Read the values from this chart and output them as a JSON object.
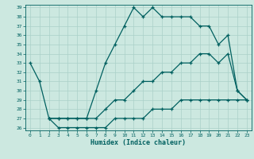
{
  "xlabel": "Humidex (Indice chaleur)",
  "background_color": "#cce8e0",
  "grid_color": "#aad0c8",
  "line_color": "#006060",
  "xlim": [
    -0.5,
    23.5
  ],
  "ylim": [
    26,
    39
  ],
  "yticks": [
    26,
    27,
    28,
    29,
    30,
    31,
    32,
    33,
    34,
    35,
    36,
    37,
    38,
    39
  ],
  "xticks": [
    0,
    1,
    2,
    3,
    4,
    5,
    6,
    7,
    8,
    9,
    10,
    11,
    12,
    13,
    14,
    15,
    16,
    17,
    18,
    19,
    20,
    21,
    22,
    23
  ],
  "curve1_x": [
    0,
    1,
    2,
    3,
    4,
    5,
    6,
    7,
    8,
    9,
    10,
    11,
    12,
    13,
    14,
    15,
    16,
    17,
    18,
    19,
    20,
    21,
    22,
    23
  ],
  "curve1_y": [
    33,
    31,
    27,
    27,
    27,
    27,
    27,
    30,
    33,
    35,
    37,
    39,
    38,
    39,
    38,
    38,
    38,
    38,
    37,
    37,
    35,
    36,
    30,
    29
  ],
  "curve2_x": [
    2,
    3,
    4,
    5,
    6,
    7,
    8,
    9,
    10,
    11,
    12,
    13,
    14,
    15,
    16,
    17,
    18,
    19,
    20,
    21,
    22,
    23
  ],
  "curve2_y": [
    27,
    27,
    27,
    27,
    27,
    27,
    28,
    29,
    29,
    30,
    31,
    31,
    32,
    32,
    33,
    33,
    34,
    34,
    33,
    34,
    30,
    29
  ],
  "curve3_x": [
    2,
    3,
    4,
    5,
    6,
    7,
    8,
    9,
    10,
    11,
    12,
    13,
    14,
    15,
    16,
    17,
    18,
    19,
    20,
    21,
    22,
    23
  ],
  "curve3_y": [
    27,
    26,
    26,
    26,
    26,
    26,
    26,
    27,
    27,
    27,
    27,
    28,
    28,
    28,
    29,
    29,
    29,
    29,
    29,
    29,
    29,
    29
  ]
}
